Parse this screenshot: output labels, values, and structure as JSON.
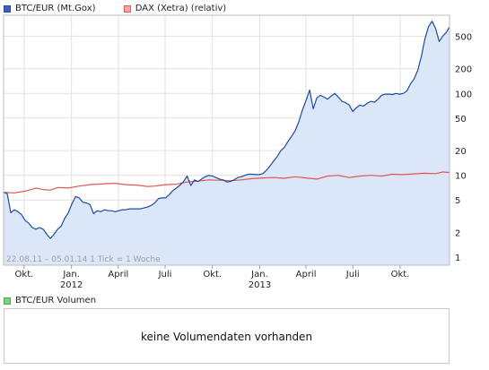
{
  "legend": [
    {
      "label": "BTC/EUR (Mt.Gox)",
      "color": "#2a4f9e",
      "fill": "#3b62c2"
    },
    {
      "label": "DAX (Xetra) (relativ)",
      "color": "#e35a5a",
      "fill": "#f4a8a8"
    }
  ],
  "range_note": "22.08.11 – 05.01.14   1 Tick = 1 Woche",
  "volume": {
    "legend_label": "BTC/EUR Volumen",
    "legend_color": "#4caf50",
    "message": "keine Volumendaten vorhanden"
  },
  "chart_data": {
    "type": "line",
    "x_range": [
      "2011-08-22",
      "2014-01-05"
    ],
    "y_scale": "log",
    "ylim": [
      0.8,
      900
    ],
    "y_ticks": [
      1,
      2,
      5,
      10,
      20,
      50,
      100,
      200,
      500
    ],
    "x_ticks": [
      {
        "date": "2011-10-01",
        "label": "Okt."
      },
      {
        "date": "2012-01-01",
        "label": "Jan.",
        "year": "2012"
      },
      {
        "date": "2012-04-01",
        "label": "April"
      },
      {
        "date": "2012-07-01",
        "label": "Juli"
      },
      {
        "date": "2012-10-01",
        "label": "Okt."
      },
      {
        "date": "2013-01-01",
        "label": "Jan.",
        "year": "2013"
      },
      {
        "date": "2013-04-01",
        "label": "April"
      },
      {
        "date": "2013-07-01",
        "label": "Juli"
      },
      {
        "date": "2013-10-01",
        "label": "Okt."
      }
    ],
    "grid": true,
    "series": [
      {
        "name": "BTC/EUR (Mt.Gox)",
        "color": "#1f4c9c",
        "area_fill": "#dbe6f8",
        "points": [
          [
            "2011-08-22",
            6.2
          ],
          [
            "2011-08-29",
            6.0
          ],
          [
            "2011-09-05",
            3.5
          ],
          [
            "2011-09-12",
            3.8
          ],
          [
            "2011-09-19",
            3.6
          ],
          [
            "2011-09-26",
            3.3
          ],
          [
            "2011-10-03",
            2.8
          ],
          [
            "2011-10-10",
            2.6
          ],
          [
            "2011-10-17",
            2.3
          ],
          [
            "2011-10-24",
            2.2
          ],
          [
            "2011-10-31",
            2.3
          ],
          [
            "2011-11-07",
            2.2
          ],
          [
            "2011-11-14",
            1.9
          ],
          [
            "2011-11-21",
            1.7
          ],
          [
            "2011-11-28",
            1.9
          ],
          [
            "2011-12-05",
            2.2
          ],
          [
            "2011-12-12",
            2.4
          ],
          [
            "2011-12-19",
            3.0
          ],
          [
            "2011-12-26",
            3.5
          ],
          [
            "2012-01-02",
            4.5
          ],
          [
            "2012-01-09",
            5.5
          ],
          [
            "2012-01-16",
            5.3
          ],
          [
            "2012-01-23",
            4.7
          ],
          [
            "2012-01-30",
            4.6
          ],
          [
            "2012-02-06",
            4.4
          ],
          [
            "2012-02-13",
            3.4
          ],
          [
            "2012-02-20",
            3.7
          ],
          [
            "2012-02-27",
            3.6
          ],
          [
            "2012-03-05",
            3.8
          ],
          [
            "2012-03-12",
            3.7
          ],
          [
            "2012-03-19",
            3.7
          ],
          [
            "2012-03-26",
            3.6
          ],
          [
            "2012-04-02",
            3.7
          ],
          [
            "2012-04-09",
            3.8
          ],
          [
            "2012-04-16",
            3.8
          ],
          [
            "2012-04-23",
            3.9
          ],
          [
            "2012-04-30",
            3.9
          ],
          [
            "2012-05-07",
            3.9
          ],
          [
            "2012-05-14",
            3.9
          ],
          [
            "2012-05-21",
            4.0
          ],
          [
            "2012-05-28",
            4.1
          ],
          [
            "2012-06-04",
            4.3
          ],
          [
            "2012-06-11",
            4.6
          ],
          [
            "2012-06-18",
            5.2
          ],
          [
            "2012-06-25",
            5.3
          ],
          [
            "2012-07-02",
            5.3
          ],
          [
            "2012-07-09",
            5.8
          ],
          [
            "2012-07-16",
            6.5
          ],
          [
            "2012-07-23",
            7.0
          ],
          [
            "2012-07-30",
            7.6
          ],
          [
            "2012-08-06",
            8.4
          ],
          [
            "2012-08-13",
            9.8
          ],
          [
            "2012-08-20",
            7.5
          ],
          [
            "2012-08-27",
            8.8
          ],
          [
            "2012-09-03",
            8.4
          ],
          [
            "2012-09-10",
            9.0
          ],
          [
            "2012-09-17",
            9.6
          ],
          [
            "2012-09-24",
            10.0
          ],
          [
            "2012-10-01",
            9.8
          ],
          [
            "2012-10-08",
            9.4
          ],
          [
            "2012-10-15",
            9.0
          ],
          [
            "2012-10-22",
            8.8
          ],
          [
            "2012-10-29",
            8.3
          ],
          [
            "2012-11-05",
            8.4
          ],
          [
            "2012-11-12",
            8.8
          ],
          [
            "2012-11-19",
            9.4
          ],
          [
            "2012-11-26",
            9.6
          ],
          [
            "2012-12-03",
            10.0
          ],
          [
            "2012-12-10",
            10.3
          ],
          [
            "2012-12-17",
            10.3
          ],
          [
            "2012-12-24",
            10.2
          ],
          [
            "2012-12-31",
            10.2
          ],
          [
            "2013-01-07",
            10.5
          ],
          [
            "2013-01-14",
            11.5
          ],
          [
            "2013-01-21",
            13.0
          ],
          [
            "2013-01-28",
            15.0
          ],
          [
            "2013-02-04",
            17.0
          ],
          [
            "2013-02-11",
            20.0
          ],
          [
            "2013-02-18",
            22.0
          ],
          [
            "2013-02-25",
            26.0
          ],
          [
            "2013-03-04",
            30.0
          ],
          [
            "2013-03-11",
            35.0
          ],
          [
            "2013-03-18",
            45.0
          ],
          [
            "2013-03-25",
            63.0
          ],
          [
            "2013-04-01",
            82.0
          ],
          [
            "2013-04-08",
            110.0
          ],
          [
            "2013-04-15",
            65.0
          ],
          [
            "2013-04-22",
            88.0
          ],
          [
            "2013-04-29",
            95.0
          ],
          [
            "2013-05-06",
            90.0
          ],
          [
            "2013-05-13",
            85.0
          ],
          [
            "2013-05-20",
            93.0
          ],
          [
            "2013-05-27",
            100.0
          ],
          [
            "2013-06-03",
            90.0
          ],
          [
            "2013-06-10",
            80.0
          ],
          [
            "2013-06-17",
            77.0
          ],
          [
            "2013-06-24",
            72.0
          ],
          [
            "2013-07-01",
            60.0
          ],
          [
            "2013-07-08",
            67.0
          ],
          [
            "2013-07-15",
            72.0
          ],
          [
            "2013-07-22",
            70.0
          ],
          [
            "2013-07-29",
            76.0
          ],
          [
            "2013-08-05",
            80.0
          ],
          [
            "2013-08-12",
            78.0
          ],
          [
            "2013-08-19",
            85.0
          ],
          [
            "2013-08-26",
            95.0
          ],
          [
            "2013-09-02",
            98.0
          ],
          [
            "2013-09-09",
            98.0
          ],
          [
            "2013-09-16",
            97.0
          ],
          [
            "2013-09-23",
            100.0
          ],
          [
            "2013-09-30",
            98.0
          ],
          [
            "2013-10-07",
            100.0
          ],
          [
            "2013-10-14",
            107.0
          ],
          [
            "2013-10-21",
            130.0
          ],
          [
            "2013-10-28",
            150.0
          ],
          [
            "2013-11-04",
            190.0
          ],
          [
            "2013-11-11",
            280.0
          ],
          [
            "2013-11-18",
            460.0
          ],
          [
            "2013-11-25",
            650.0
          ],
          [
            "2013-12-02",
            760.0
          ],
          [
            "2013-12-09",
            620.0
          ],
          [
            "2013-12-16",
            430.0
          ],
          [
            "2013-12-23",
            500.0
          ],
          [
            "2013-12-30",
            560.0
          ],
          [
            "2014-01-05",
            650.0
          ]
        ]
      },
      {
        "name": "DAX (Xetra) (relativ)",
        "color": "#e05555",
        "points": [
          [
            "2011-08-22",
            6.2
          ],
          [
            "2011-09-12",
            6.1
          ],
          [
            "2011-10-03",
            6.4
          ],
          [
            "2011-10-24",
            7.0
          ],
          [
            "2011-11-07",
            6.7
          ],
          [
            "2011-11-21",
            6.6
          ],
          [
            "2011-12-05",
            7.1
          ],
          [
            "2011-12-26",
            7.0
          ],
          [
            "2012-01-16",
            7.4
          ],
          [
            "2012-02-06",
            7.7
          ],
          [
            "2012-03-05",
            7.9
          ],
          [
            "2012-03-26",
            8.0
          ],
          [
            "2012-04-16",
            7.7
          ],
          [
            "2012-05-07",
            7.6
          ],
          [
            "2012-05-28",
            7.3
          ],
          [
            "2012-06-11",
            7.4
          ],
          [
            "2012-07-02",
            7.7
          ],
          [
            "2012-07-23",
            7.8
          ],
          [
            "2012-08-13",
            8.3
          ],
          [
            "2012-09-03",
            8.5
          ],
          [
            "2012-09-24",
            8.8
          ],
          [
            "2012-10-15",
            8.7
          ],
          [
            "2012-11-05",
            8.6
          ],
          [
            "2012-11-26",
            8.8
          ],
          [
            "2012-12-17",
            9.1
          ],
          [
            "2013-01-07",
            9.3
          ],
          [
            "2013-01-28",
            9.4
          ],
          [
            "2013-02-18",
            9.2
          ],
          [
            "2013-03-11",
            9.6
          ],
          [
            "2013-04-01",
            9.3
          ],
          [
            "2013-04-22",
            9.0
          ],
          [
            "2013-05-13",
            9.8
          ],
          [
            "2013-06-03",
            10.0
          ],
          [
            "2013-06-24",
            9.4
          ],
          [
            "2013-07-15",
            9.8
          ],
          [
            "2013-08-05",
            10.0
          ],
          [
            "2013-08-26",
            9.8
          ],
          [
            "2013-09-16",
            10.3
          ],
          [
            "2013-10-07",
            10.2
          ],
          [
            "2013-10-28",
            10.4
          ],
          [
            "2013-11-18",
            10.6
          ],
          [
            "2013-12-09",
            10.5
          ],
          [
            "2013-12-23",
            11.0
          ],
          [
            "2014-01-05",
            10.8
          ]
        ]
      }
    ]
  }
}
